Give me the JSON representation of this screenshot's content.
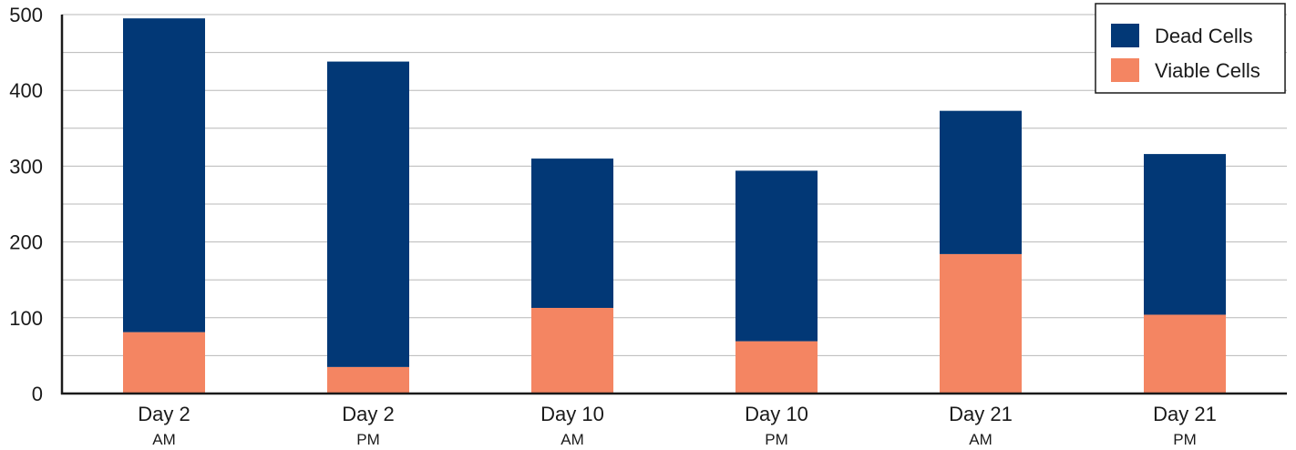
{
  "chart_data": {
    "type": "bar",
    "stacked": true,
    "categories": [
      "Day 2",
      "Day 2",
      "Day 10",
      "Day 10",
      "Day 21",
      "Day 21"
    ],
    "category_sublabels": [
      "AM",
      "PM",
      "AM",
      "PM",
      "AM",
      "PM"
    ],
    "series": [
      {
        "name": "Viable Cells",
        "color": "#f48562",
        "values": [
          81,
          35,
          113,
          69,
          184,
          104
        ]
      },
      {
        "name": "Dead Cells",
        "color": "#023876",
        "values": [
          414,
          403,
          197,
          225,
          189,
          212
        ]
      }
    ],
    "legend_order": [
      "Dead Cells",
      "Viable Cells"
    ],
    "ylim": [
      0,
      500
    ],
    "yticks": [
      0,
      100,
      200,
      300,
      400,
      500
    ],
    "grid": "horizontal, every 50",
    "legend_position": "top-right",
    "title": "",
    "xlabel": "",
    "ylabel": ""
  }
}
